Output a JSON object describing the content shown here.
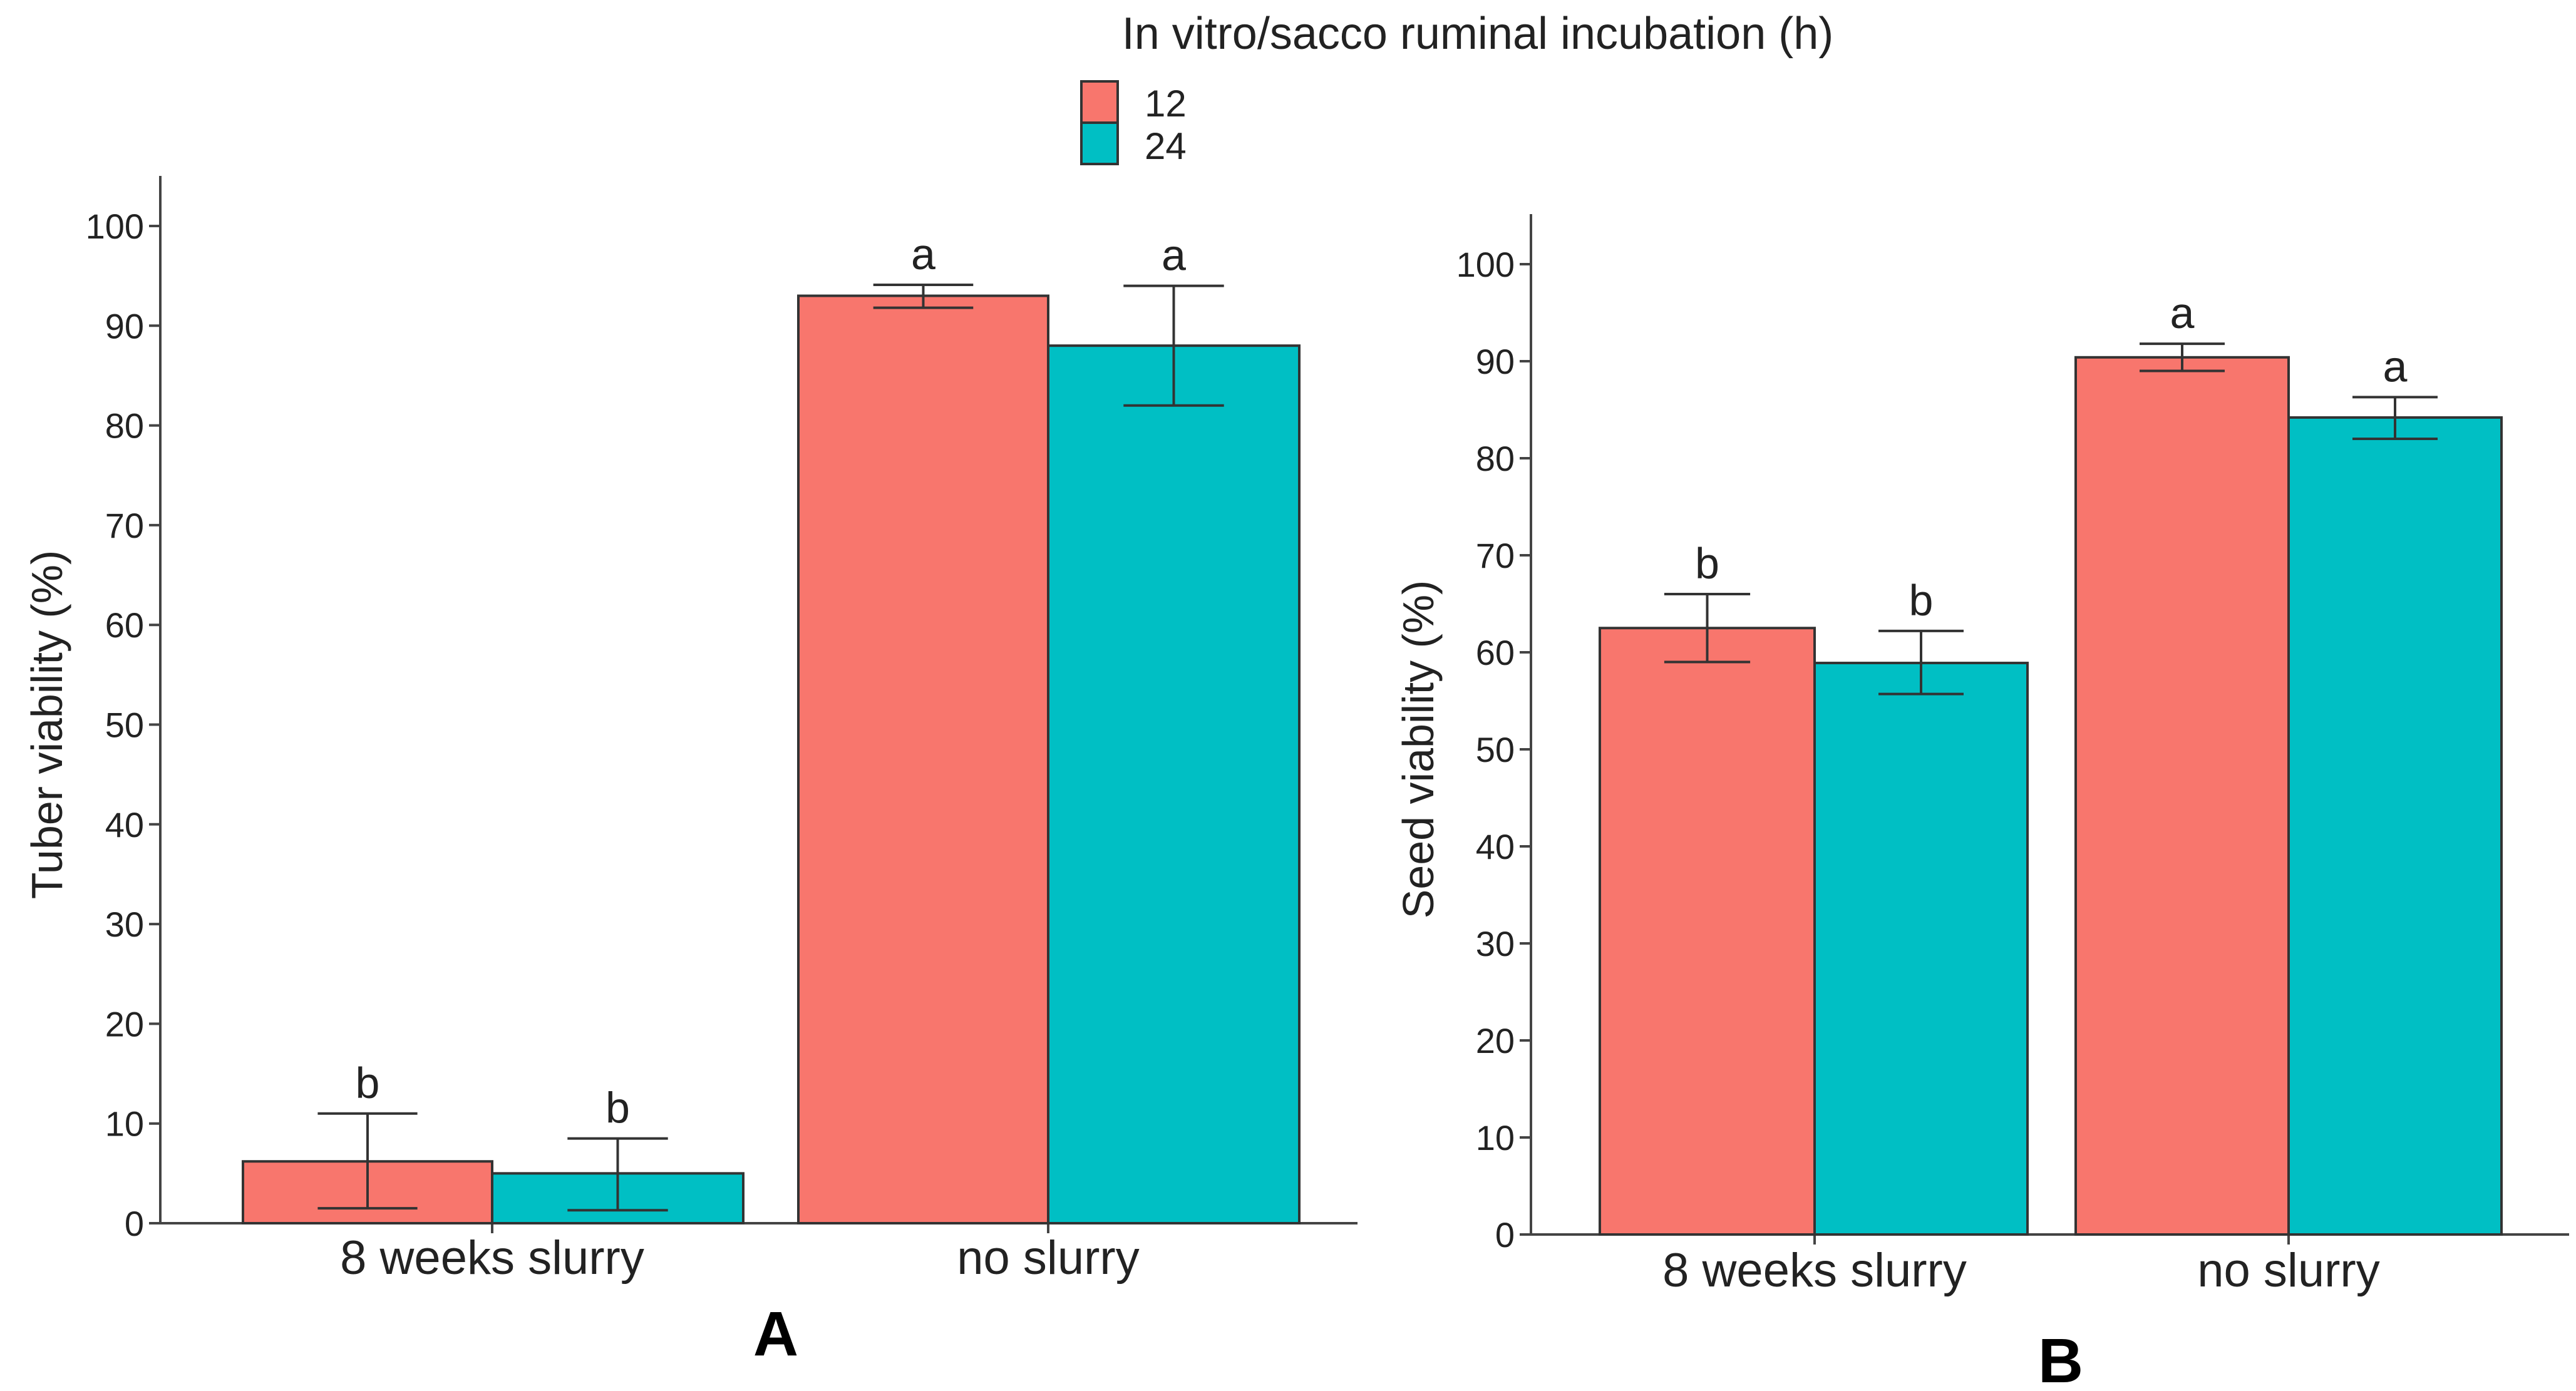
{
  "legend": {
    "title": "In vitro/sacco ruminal incubation (h)",
    "entries": [
      {
        "label": "12",
        "color": "#F8766D"
      },
      {
        "label": "24",
        "color": "#00BFC4"
      }
    ]
  },
  "chart_data": [
    {
      "type": "bar",
      "panel": "A",
      "title": "",
      "xlabel": "",
      "ylabel": "Tuber viability (%)",
      "ylim": [
        0,
        100
      ],
      "yticks": [
        "0",
        "10",
        "20",
        "30",
        "40",
        "50",
        "60",
        "70",
        "80",
        "90",
        "100"
      ],
      "categories": [
        "8 weeks slurry",
        "no slurry"
      ],
      "series": [
        {
          "name": "12",
          "values": [
            6.2,
            93.0
          ],
          "err_low": [
            1.5,
            91.8
          ],
          "err_high": [
            11.0,
            94.1
          ],
          "letters": [
            "b",
            "a"
          ]
        },
        {
          "name": "24",
          "values": [
            5.0,
            88.0
          ],
          "err_low": [
            1.3,
            82.0
          ],
          "err_high": [
            8.5,
            94.0
          ],
          "letters": [
            "b",
            "a"
          ]
        }
      ]
    },
    {
      "type": "bar",
      "panel": "B",
      "title": "",
      "xlabel": "",
      "ylabel": "Seed viability (%)",
      "ylim": [
        0,
        100
      ],
      "yticks": [
        "0",
        "10",
        "20",
        "30",
        "40",
        "50",
        "60",
        "70",
        "80",
        "90",
        "100"
      ],
      "categories": [
        "8 weeks slurry",
        "no slurry"
      ],
      "series": [
        {
          "name": "12",
          "values": [
            62.5,
            90.4
          ],
          "err_low": [
            59.0,
            89.0
          ],
          "err_high": [
            66.0,
            91.8
          ],
          "letters": [
            "b",
            "a"
          ]
        },
        {
          "name": "24",
          "values": [
            58.9,
            84.2
          ],
          "err_low": [
            55.7,
            82.0
          ],
          "err_high": [
            62.2,
            86.3
          ],
          "letters": [
            "b",
            "a"
          ]
        }
      ]
    }
  ]
}
